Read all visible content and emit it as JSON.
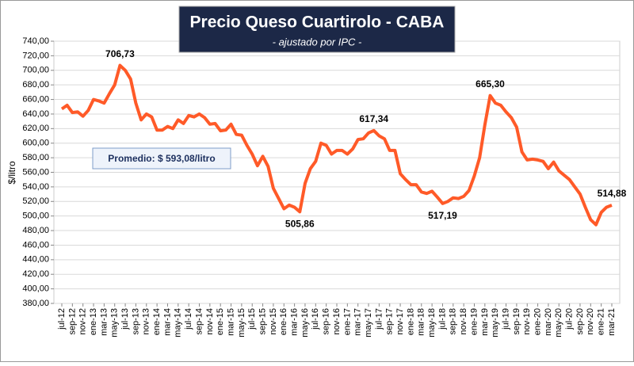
{
  "chart_data": {
    "type": "line",
    "title": "Precio Queso Cuartirolo - CABA",
    "subtitle": "- ajustado por IPC -",
    "y_label": "$/litro",
    "annotation": "Promedio: $ 593,08/litro",
    "categories": [
      "jul-12",
      null,
      "sep-12",
      null,
      "nov-12",
      null,
      "ene-13",
      null,
      "mar-13",
      null,
      "may-13",
      null,
      "jul-13",
      null,
      "sep-13",
      null,
      "nov-13",
      null,
      "ene-14",
      null,
      "mar-14",
      null,
      "may-14",
      null,
      "jul-14",
      null,
      "sep-14",
      null,
      "nov-14",
      null,
      "ene-15",
      null,
      "mar-15",
      null,
      "may-15",
      null,
      "jul-15",
      null,
      "sep-15",
      null,
      "nov-15",
      null,
      "ene-16",
      null,
      "mar-16",
      null,
      "may-16",
      null,
      "jul-16",
      null,
      "sep-16",
      null,
      "nov-16",
      null,
      "ene-17",
      null,
      "mar-17",
      null,
      "may-17",
      null,
      "jul-17",
      null,
      "sep-17",
      null,
      "nov-17",
      null,
      "ene-18",
      null,
      "mar-18",
      null,
      "may-18",
      null,
      "jul-18",
      null,
      "sep-18",
      null,
      "nov-18",
      null,
      "ene-19",
      null,
      "mar-19",
      null,
      "may-19",
      null,
      "jul-19",
      null,
      "sep-19",
      null,
      "nov-19",
      null,
      "ene-20",
      null,
      "mar-20",
      null,
      "may-20",
      null,
      "jul-20",
      null,
      "sep-20",
      null,
      "nov-20",
      null,
      "ene-21",
      null,
      "mar-21"
    ],
    "values": [
      647,
      652,
      642,
      643,
      637,
      645,
      660,
      658,
      655,
      668,
      680,
      706.73,
      700,
      688,
      655,
      632,
      640,
      636,
      618,
      618,
      623,
      620,
      632,
      627,
      638,
      636,
      640,
      635,
      626,
      627,
      617,
      618,
      626,
      612,
      611,
      597,
      585,
      569,
      582,
      568,
      538,
      524,
      510,
      515,
      512,
      505.86,
      545,
      565,
      575,
      600,
      597,
      585,
      590,
      590,
      585,
      592,
      605,
      606,
      614,
      617.34,
      610,
      606,
      590,
      590,
      558,
      550,
      543,
      543,
      533,
      531,
      534,
      526,
      517.19,
      520,
      525,
      524,
      527,
      535,
      555,
      580,
      625,
      665.3,
      655,
      652,
      643,
      635,
      622,
      588,
      577,
      578,
      577,
      575,
      565,
      574,
      562,
      556,
      550,
      540,
      530,
      512,
      495,
      488,
      505,
      512,
      514.88
    ],
    "value_labels": [
      null,
      null,
      null,
      null,
      null,
      null,
      null,
      null,
      null,
      null,
      null,
      "706,73",
      null,
      null,
      null,
      null,
      null,
      null,
      null,
      null,
      null,
      null,
      null,
      null,
      null,
      null,
      null,
      null,
      null,
      null,
      null,
      null,
      null,
      null,
      null,
      null,
      null,
      null,
      null,
      null,
      null,
      null,
      null,
      null,
      null,
      "505,86",
      null,
      null,
      null,
      null,
      null,
      null,
      null,
      null,
      null,
      null,
      null,
      null,
      null,
      "617,34",
      null,
      null,
      null,
      null,
      null,
      null,
      null,
      null,
      null,
      null,
      null,
      null,
      "517,19",
      null,
      null,
      null,
      null,
      null,
      null,
      null,
      null,
      "665,30",
      null,
      null,
      null,
      null,
      null,
      null,
      null,
      null,
      null,
      null,
      null,
      null,
      null,
      null,
      null,
      null,
      null,
      null,
      null,
      null,
      null,
      null,
      "514,88"
    ],
    "color": "#ff5a28",
    "ylim": [
      380,
      740
    ],
    "yticks": [
      {
        "value": 380,
        "label": "380,00"
      },
      {
        "value": 400,
        "label": "400,00"
      },
      {
        "value": 420,
        "label": "420,00"
      },
      {
        "value": 440,
        "label": "440,00"
      },
      {
        "value": 460,
        "label": "460,00"
      },
      {
        "value": 480,
        "label": "480,00"
      },
      {
        "value": 500,
        "label": "500,00"
      },
      {
        "value": 520,
        "label": "520,00"
      },
      {
        "value": 540,
        "label": "540,00"
      },
      {
        "value": 560,
        "label": "560,00"
      },
      {
        "value": 580,
        "label": "580,00"
      },
      {
        "value": 600,
        "label": "600,00"
      },
      {
        "value": 620,
        "label": "620,00"
      },
      {
        "value": 640,
        "label": "640,00"
      },
      {
        "value": 660,
        "label": "660,00"
      },
      {
        "value": 680,
        "label": "680,00"
      },
      {
        "value": 700,
        "label": "700,00"
      },
      {
        "value": 720,
        "label": "720,00"
      },
      {
        "value": 740,
        "label": "740,00"
      }
    ],
    "grid": true
  }
}
